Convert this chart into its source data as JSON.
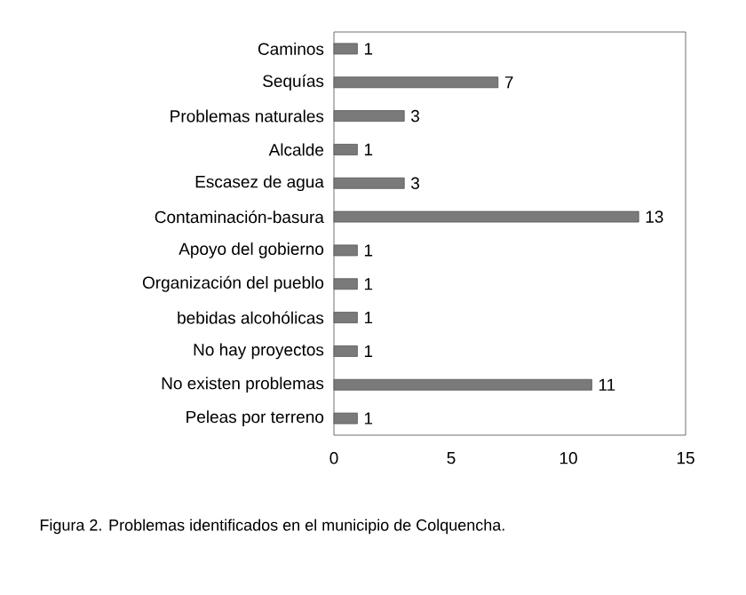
{
  "chart_data": {
    "type": "bar",
    "orientation": "horizontal",
    "categories": [
      "Caminos",
      "Sequías",
      "Problemas naturales",
      "Alcalde",
      "Escasez de agua",
      "Contaminación-basura",
      "Apoyo del gobierno",
      "Organización del pueblo",
      "bebidas alcohólicas",
      "No hay proyectos",
      "No existen problemas",
      "Peleas por terreno"
    ],
    "values": [
      1,
      7,
      3,
      1,
      3,
      13,
      1,
      1,
      1,
      1,
      11,
      1
    ],
    "color": "#7a7a7a",
    "xlim": [
      0,
      15
    ],
    "xticks": [
      0,
      5,
      10,
      15
    ],
    "data_labels": true,
    "annotations": [
      "Figura 2. Problemas identificados en el municipio de Colquencha."
    ]
  }
}
